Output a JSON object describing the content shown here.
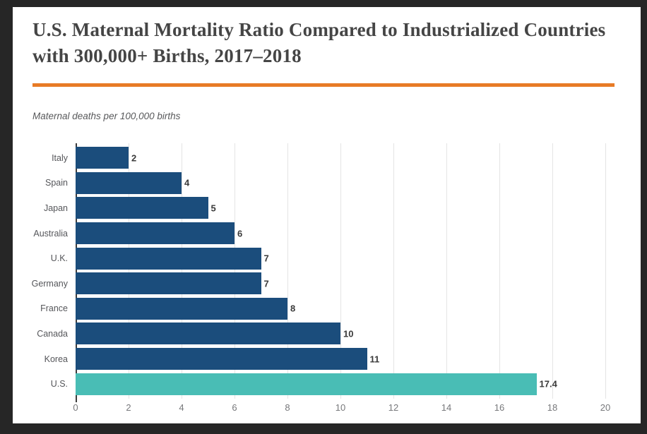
{
  "page": {
    "frame_color": "#262626",
    "card_bg": "#ffffff"
  },
  "header": {
    "title": "U.S. Maternal Mortality Ratio Compared to Industrialized Countries with 300,000+ Births, 2017–2018",
    "title_color": "#454545",
    "rule_color": "#e87b26"
  },
  "chart_data": {
    "type": "bar",
    "orientation": "horizontal",
    "title": "U.S. Maternal Mortality Ratio Compared to Industrialized Countries with 300,000+ Births, 2017–2018",
    "axis_caption": "Maternal deaths per 100,000 births",
    "categories": [
      "Italy",
      "Spain",
      "Japan",
      "Australia",
      "U.K.",
      "Germany",
      "France",
      "Canada",
      "Korea",
      "U.S."
    ],
    "values": [
      2,
      4,
      5,
      6,
      7,
      7,
      8,
      10,
      11,
      17.4
    ],
    "value_labels": [
      "2",
      "4",
      "5",
      "6",
      "7",
      "7",
      "8",
      "10",
      "11",
      "17.4"
    ],
    "highlight_index": 9,
    "bar_color": "#1b4d7c",
    "highlight_color": "#49bdb5",
    "xlim": [
      0,
      20
    ],
    "x_ticks": [
      0,
      2,
      4,
      6,
      8,
      10,
      12,
      14,
      16,
      18,
      20
    ],
    "grid": true,
    "legend": false
  }
}
